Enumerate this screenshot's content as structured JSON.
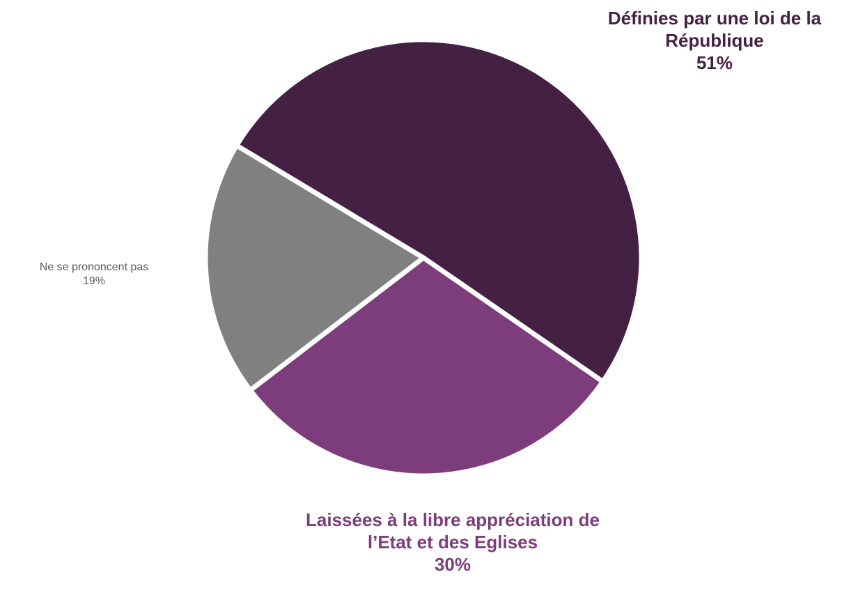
{
  "chart_data": {
    "type": "pie",
    "slices": [
      {
        "label_lines": [
          "Définies par une loi de la",
          "République"
        ],
        "value": 51,
        "value_label": "51%",
        "color": "#442142"
      },
      {
        "label_lines": [
          "Laissées à la libre appréciation de",
          "l’Etat et des Eglises"
        ],
        "value": 30,
        "value_label": "30%",
        "color": "#7d3d7c"
      },
      {
        "label_lines": [
          "Ne se prononcent pas"
        ],
        "value": 19,
        "value_label": "19%",
        "color": "#808080"
      }
    ],
    "label_colors": [
      "#442142",
      "#7d3d7c",
      "#595959"
    ],
    "start_angle_deg": -59,
    "direction": "clockwise",
    "separator_color": "#ffffff",
    "legend": "none"
  }
}
